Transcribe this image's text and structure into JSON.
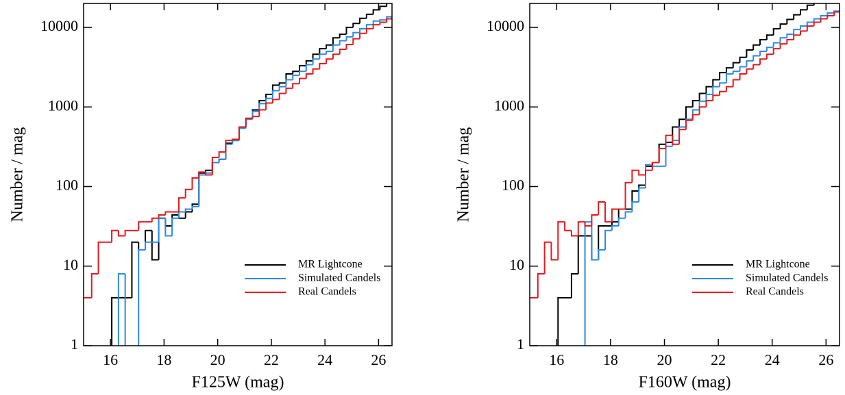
{
  "chart_data": [
    {
      "type": "histogram",
      "xlabel": "F125W (mag)",
      "ylabel": "Number / mag",
      "log_y": true,
      "legend": "lower right",
      "xlim": [
        15,
        26.5
      ],
      "ylim": [
        1,
        20000
      ],
      "xticks": [
        16,
        18,
        20,
        22,
        24,
        26
      ],
      "yticks": [
        1,
        10,
        100,
        1000,
        10000
      ],
      "bins": [
        14.8,
        15.05,
        15.3,
        15.55,
        15.8,
        16.05,
        16.3,
        16.55,
        16.8,
        17.05,
        17.3,
        17.55,
        17.8,
        18.05,
        18.3,
        18.55,
        18.8,
        19.05,
        19.3,
        19.55,
        19.8,
        20.05,
        20.3,
        20.55,
        20.8,
        21.05,
        21.3,
        21.55,
        21.8,
        22.05,
        22.3,
        22.55,
        22.8,
        23.05,
        23.3,
        23.55,
        23.8,
        24.05,
        24.3,
        24.55,
        24.8,
        25.05,
        25.3,
        25.55,
        25.8,
        26.05,
        26.3,
        26.55
      ],
      "series": [
        {
          "name": "MR Lightcone",
          "color": "#000000",
          "values": [
            0,
            0,
            0,
            0,
            0,
            4,
            4,
            4,
            20,
            16,
            28,
            12,
            40,
            32,
            44,
            40,
            48,
            60,
            148,
            160,
            200,
            220,
            350,
            380,
            560,
            720,
            920,
            1200,
            1440,
            1880,
            2000,
            2600,
            2800,
            3300,
            3800,
            4600,
            5400,
            6000,
            7400,
            8200,
            10000,
            11200,
            13000,
            14600,
            16600,
            18400,
            21000
          ]
        },
        {
          "name": "Simulated Candels",
          "color": "#2b8ae6",
          "values": [
            0,
            0,
            0,
            0,
            0,
            0,
            8,
            0,
            0,
            16,
            20,
            20,
            40,
            24,
            40,
            48,
            52,
            56,
            140,
            148,
            200,
            220,
            340,
            380,
            540,
            700,
            880,
            1100,
            1280,
            1600,
            1800,
            2200,
            2500,
            2800,
            3400,
            4000,
            4600,
            5000,
            6000,
            6800,
            7600,
            8600,
            9600,
            10800,
            12000,
            12400,
            13600
          ]
        },
        {
          "name": "Real Candels",
          "color": "#e5191d",
          "values": [
            4,
            4,
            8,
            20,
            20,
            28,
            24,
            28,
            28,
            36,
            36,
            40,
            44,
            48,
            48,
            72,
            92,
            128,
            152,
            140,
            232,
            272,
            380,
            392,
            560,
            720,
            760,
            920,
            1120,
            1240,
            1480,
            1720,
            1960,
            2280,
            2600,
            3000,
            3500,
            4000,
            4600,
            5300,
            6100,
            7200,
            8400,
            9600,
            10800,
            11600,
            12800
          ]
        }
      ]
    },
    {
      "type": "histogram",
      "xlabel": "F160W (mag)",
      "ylabel": "Number / mag",
      "log_y": true,
      "legend": "lower right",
      "xlim": [
        15,
        26.5
      ],
      "ylim": [
        1,
        20000
      ],
      "xticks": [
        16,
        18,
        20,
        22,
        24,
        26
      ],
      "yticks": [
        1,
        10,
        100,
        1000,
        10000
      ],
      "bins": [
        14.8,
        15.05,
        15.3,
        15.55,
        15.8,
        16.05,
        16.3,
        16.55,
        16.8,
        17.05,
        17.3,
        17.55,
        17.8,
        18.05,
        18.3,
        18.55,
        18.8,
        19.05,
        19.3,
        19.55,
        19.8,
        20.05,
        20.3,
        20.55,
        20.8,
        21.05,
        21.3,
        21.55,
        21.8,
        22.05,
        22.3,
        22.55,
        22.8,
        23.05,
        23.3,
        23.55,
        23.8,
        24.05,
        24.3,
        24.55,
        24.8,
        25.05,
        25.3,
        25.55,
        25.8,
        26.05,
        26.3,
        26.55
      ],
      "series": [
        {
          "name": "MR Lightcone",
          "color": "#000000",
          "values": [
            0,
            0,
            0,
            0,
            0,
            4,
            4,
            8,
            24,
            24,
            12,
            32,
            32,
            36,
            52,
            52,
            88,
            104,
            180,
            200,
            340,
            360,
            560,
            700,
            1000,
            1200,
            1480,
            1800,
            2200,
            2700,
            3100,
            3600,
            4200,
            5200,
            6000,
            7000,
            8000,
            9600,
            11000,
            12600,
            14400,
            16600,
            19000,
            21000,
            23000,
            25000,
            28000
          ]
        },
        {
          "name": "Simulated Candels",
          "color": "#2b8ae6",
          "values": [
            0,
            0,
            0,
            0,
            0,
            0,
            0,
            0,
            0,
            36,
            12,
            16,
            28,
            32,
            40,
            48,
            64,
            96,
            188,
            180,
            180,
            320,
            380,
            560,
            700,
            920,
            1180,
            1440,
            1800,
            2000,
            2600,
            2800,
            3200,
            3800,
            4400,
            5000,
            5600,
            6400,
            7400,
            8200,
            9400,
            10400,
            11600,
            12800,
            14000,
            15200,
            16000
          ]
        },
        {
          "name": "Real Candels",
          "color": "#e5191d",
          "values": [
            4,
            4,
            8,
            20,
            12,
            36,
            28,
            24,
            36,
            32,
            44,
            64,
            36,
            52,
            52,
            112,
            160,
            140,
            160,
            200,
            300,
            440,
            340,
            520,
            680,
            800,
            1000,
            1200,
            1400,
            1560,
            1800,
            2200,
            2600,
            3000,
            3400,
            4000,
            4600,
            5400,
            6200,
            7000,
            8000,
            9000,
            10400,
            11600,
            12800,
            14000,
            15600
          ]
        }
      ]
    }
  ]
}
